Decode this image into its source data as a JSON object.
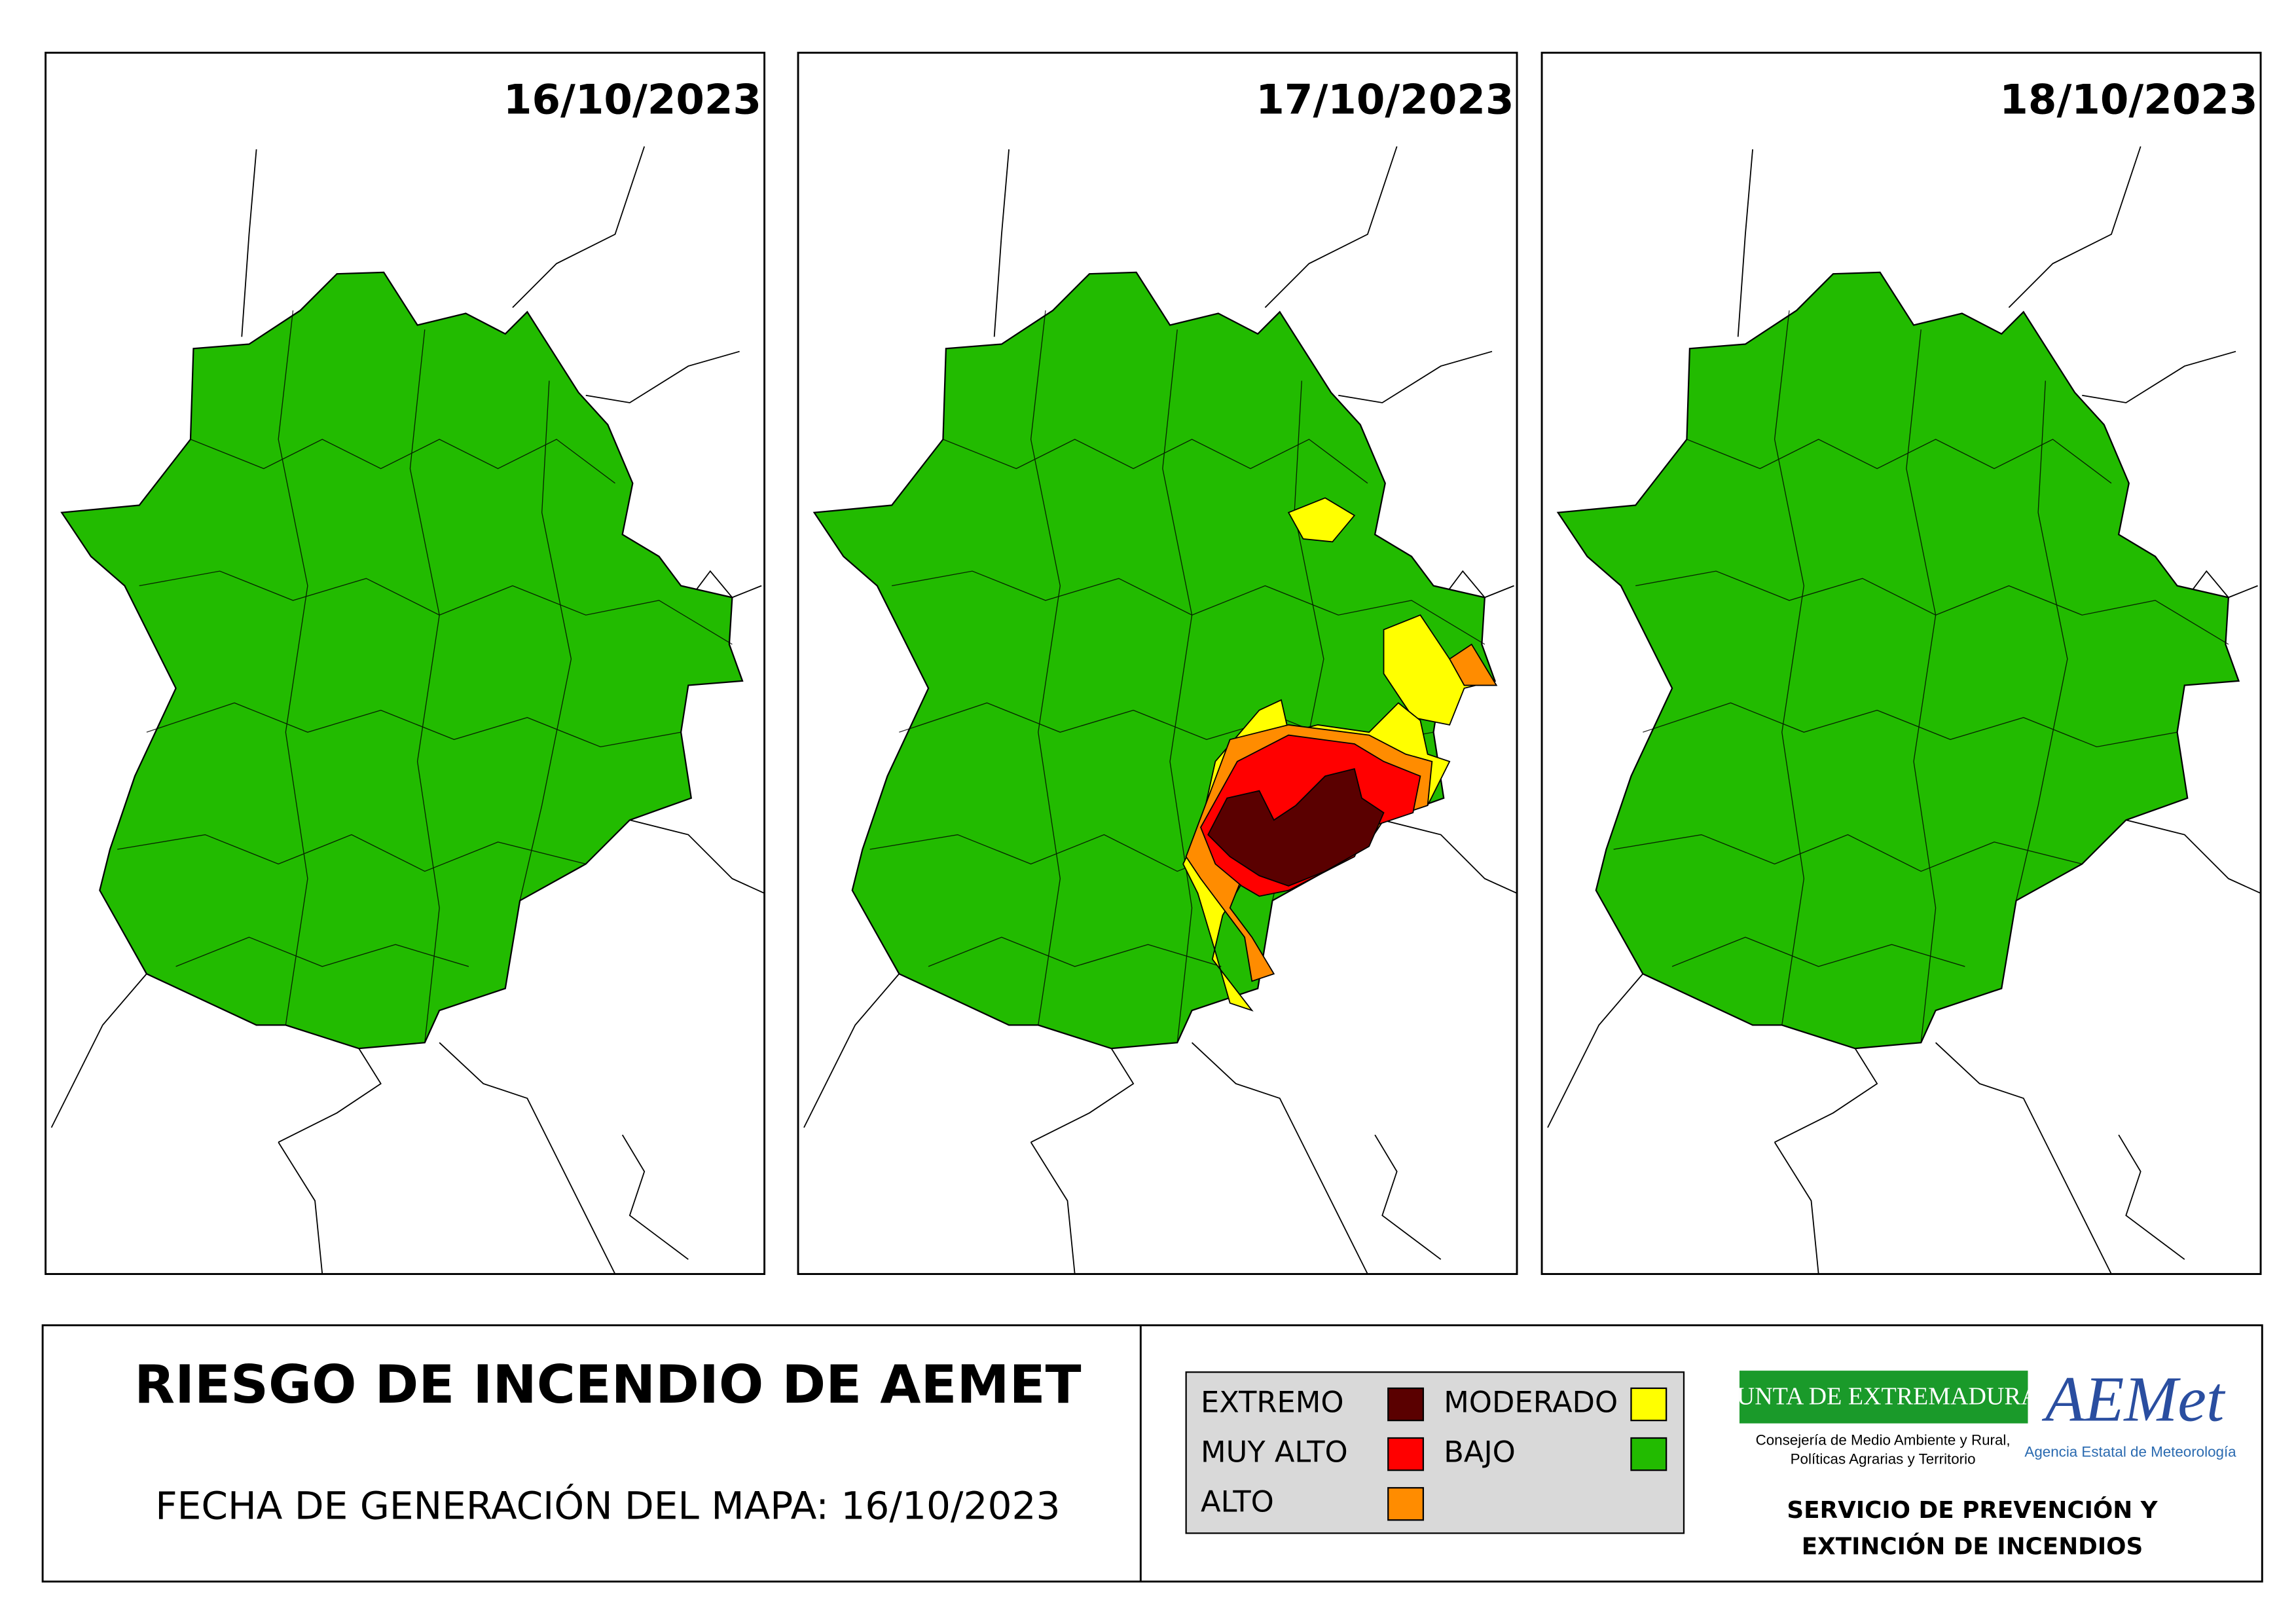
{
  "maps": [
    {
      "date": "16/10/2023"
    },
    {
      "date": "17/10/2023"
    },
    {
      "date": "18/10/2023"
    }
  ],
  "footer": {
    "title": "RIESGO DE INCENDIO DE AEMET",
    "generation_date": "FECHA DE GENERACIÓN DEL MAPA: 16/10/2023"
  },
  "legend": {
    "items": [
      {
        "label": "EXTREMO",
        "color": "#5a0000"
      },
      {
        "label": "MUY ALTO",
        "color": "#ff0000"
      },
      {
        "label": "ALTO",
        "color": "#ff8c00"
      },
      {
        "label": "MODERADO",
        "color": "#ffff00"
      },
      {
        "label": "BAJO",
        "color": "#22bb00"
      }
    ]
  },
  "logos": {
    "junta": "JUNTA DE EXTREMADURA",
    "consejeria": [
      "Consejería de Medio Ambiente y Rural,",
      "Políticas Agrarias y Territorio"
    ],
    "aemet": "AEMet",
    "aemet_subtitle": "Agencia Estatal de Meteorología"
  },
  "service": [
    "SERVICIO DE PREVENCIÓN Y",
    "EXTINCIÓN DE INCENDIOS"
  ]
}
